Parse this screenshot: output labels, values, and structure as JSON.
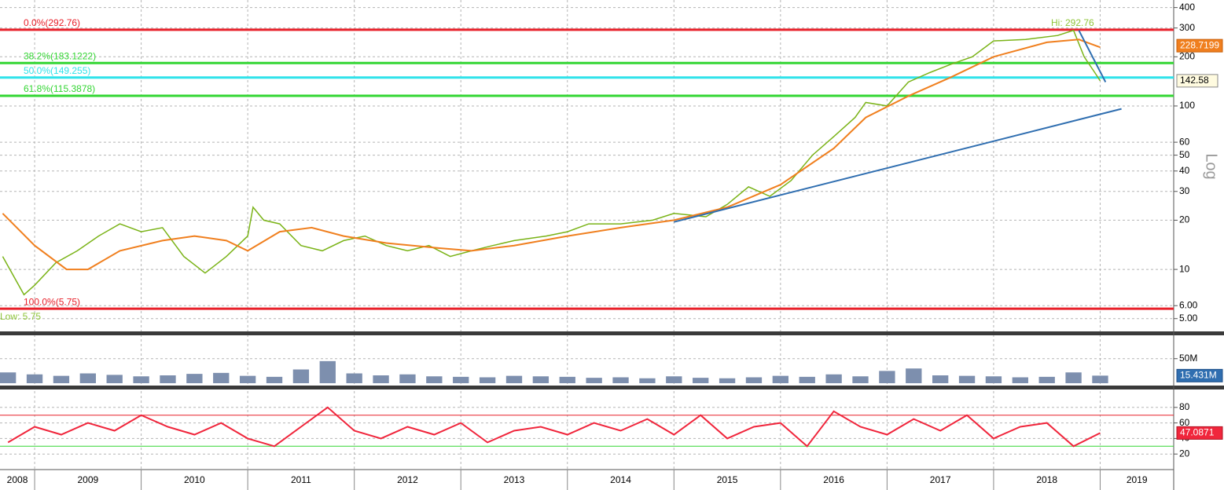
{
  "chart_data": [
    {
      "type": "line",
      "log_scale": true,
      "grid": true,
      "xlim": [
        2008.675,
        2019.69
      ],
      "xticks": [
        2009,
        2010,
        2011,
        2012,
        2013,
        2014,
        2015,
        2016,
        2017,
        2018,
        2019
      ],
      "ylim": [
        4.27,
        445
      ],
      "yticks": [
        400,
        300,
        200,
        100,
        60,
        50,
        40,
        30,
        20,
        10,
        {
          "value": 6,
          "label": "6.00"
        },
        {
          "value": 5,
          "label": "5.00"
        }
      ],
      "axis_label": "Log",
      "annotations": [
        "Hi: 292.76",
        "Low: 5.75"
      ],
      "levels": [
        {
          "label": "0.0%(292.76)",
          "value": 292.76,
          "color": "#e8202a"
        },
        {
          "label": "38.2%(183.1222)",
          "value": 183.1222,
          "color": "#33d633"
        },
        {
          "label": "50.0%(149.255)",
          "value": 149.255,
          "color": "#2fe3ea"
        },
        {
          "label": "61.8%(115.3878)",
          "value": 115.3878,
          "color": "#33d633"
        },
        {
          "label": "100.0%(5.75)",
          "value": 5.75,
          "color": "#e8202a"
        }
      ],
      "series": [
        {
          "color": "#7ab317",
          "x": [
            2008.7,
            2008.9,
            2009.0,
            2009.2,
            2009.4,
            2009.6,
            2009.8,
            2010.0,
            2010.2,
            2010.4,
            2010.6,
            2010.8,
            2011.0,
            2011.05,
            2011.15,
            2011.3,
            2011.5,
            2011.7,
            2011.9,
            2012.1,
            2012.3,
            2012.5,
            2012.7,
            2012.9,
            2013.1,
            2013.3,
            2013.5,
            2013.8,
            2014.0,
            2014.2,
            2014.5,
            2014.8,
            2015.0,
            2015.3,
            2015.5,
            2015.7,
            2015.9,
            2016.1,
            2016.3,
            2016.5,
            2016.7,
            2016.8,
            2017.0,
            2017.2,
            2017.4,
            2017.6,
            2017.8,
            2018.0,
            2018.3,
            2018.6,
            2018.75,
            2018.85,
            2018.95,
            2019.0
          ],
          "values": [
            12,
            7,
            8,
            11,
            13,
            16,
            19,
            17,
            18,
            12,
            9.5,
            12,
            16,
            24,
            20,
            19,
            14,
            13,
            15,
            16,
            14,
            13,
            14,
            12,
            13,
            14,
            15,
            16,
            17,
            19,
            19,
            20,
            22,
            21,
            25,
            32,
            28,
            35,
            50,
            65,
            85,
            105,
            100,
            140,
            160,
            180,
            200,
            250,
            255,
            270,
            290,
            200,
            160,
            142.58
          ]
        },
        {
          "color": "#f07f1e",
          "x": [
            2008.7,
            2009.0,
            2009.3,
            2009.5,
            2009.8,
            2010.2,
            2010.5,
            2010.8,
            2011.0,
            2011.3,
            2011.6,
            2011.9,
            2012.3,
            2012.8,
            2013.1,
            2013.5,
            2014.0,
            2014.5,
            2015.0,
            2015.5,
            2016.0,
            2016.5,
            2016.8,
            2017.2,
            2017.6,
            2018.0,
            2018.5,
            2018.8,
            2019.0
          ],
          "values": [
            22,
            14,
            10,
            10,
            13,
            15,
            16,
            15,
            13,
            17,
            18,
            16,
            14.5,
            13.5,
            13,
            14,
            16,
            18,
            20,
            24,
            33,
            55,
            85,
            115,
            150,
            200,
            245,
            255,
            228.7199
          ]
        },
        {
          "color": "#2f6eb0",
          "x": [
            2015.0,
            2019.2
          ],
          "values": [
            19.5,
            96
          ]
        },
        {
          "color": "#2f6eb0",
          "x": [
            2018.8,
            2019.05
          ],
          "values": [
            290,
            140
          ]
        }
      ]
    },
    {
      "type": "bar",
      "color": "#7d8fae",
      "xlim": [
        2008.675,
        2019.69
      ],
      "ylim": [
        0,
        96
      ],
      "yticks": [
        {
          "value": 50,
          "label": "50M"
        }
      ],
      "last_label": "15.431M",
      "x": [
        2008.75,
        2009.0,
        2009.25,
        2009.5,
        2009.75,
        2010.0,
        2010.25,
        2010.5,
        2010.75,
        2011.0,
        2011.25,
        2011.5,
        2011.75,
        2012.0,
        2012.25,
        2012.5,
        2012.75,
        2013.0,
        2013.25,
        2013.5,
        2013.75,
        2014.0,
        2014.25,
        2014.5,
        2014.75,
        2015.0,
        2015.25,
        2015.5,
        2015.75,
        2016.0,
        2016.25,
        2016.5,
        2016.75,
        2017.0,
        2017.25,
        2017.5,
        2017.75,
        2018.0,
        2018.25,
        2018.5,
        2018.75,
        2019.0
      ],
      "values": [
        22,
        18,
        15,
        20,
        17,
        14,
        16,
        19,
        21,
        15,
        13,
        28,
        45,
        20,
        16,
        18,
        14,
        13,
        12,
        15,
        14,
        13,
        11,
        12,
        10,
        14,
        11,
        10,
        12,
        15,
        13,
        18,
        14,
        25,
        30,
        16,
        15,
        14,
        12,
        13,
        22,
        15.431
      ]
    },
    {
      "type": "line",
      "color": "#f0263c",
      "xlim": [
        2008.675,
        2019.69
      ],
      "ylim": [
        0,
        100
      ],
      "yticks": [
        80,
        60,
        40,
        20
      ],
      "xticks": [
        2009,
        2010,
        2011,
        2012,
        2013,
        2014,
        2015,
        2016,
        2017,
        2018,
        2019
      ],
      "categories": [
        "2008",
        "2009",
        "2010",
        "2011",
        "2012",
        "2013",
        "2014",
        "2015",
        "2016",
        "2017",
        "2018",
        "2019"
      ],
      "levels": [
        {
          "value": 70,
          "color": "#e8202a"
        },
        {
          "value": 30,
          "color": "#33d633"
        }
      ],
      "x": [
        2008.75,
        2009.0,
        2009.25,
        2009.5,
        2009.75,
        2010.0,
        2010.25,
        2010.5,
        2010.75,
        2011.0,
        2011.25,
        2011.5,
        2011.75,
        2012.0,
        2012.25,
        2012.5,
        2012.75,
        2013.0,
        2013.25,
        2013.5,
        2013.75,
        2014.0,
        2014.25,
        2014.5,
        2014.75,
        2015.0,
        2015.25,
        2015.5,
        2015.75,
        2016.0,
        2016.25,
        2016.5,
        2016.75,
        2017.0,
        2017.25,
        2017.5,
        2017.75,
        2018.0,
        2018.25,
        2018.5,
        2018.75,
        2019.0
      ],
      "values": [
        35,
        55,
        45,
        60,
        50,
        70,
        55,
        45,
        60,
        40,
        30,
        55,
        80,
        50,
        40,
        55,
        45,
        60,
        35,
        50,
        55,
        45,
        60,
        50,
        65,
        45,
        70,
        40,
        55,
        60,
        30,
        75,
        55,
        45,
        65,
        50,
        70,
        40,
        55,
        60,
        30,
        47.0871
      ]
    }
  ]
}
